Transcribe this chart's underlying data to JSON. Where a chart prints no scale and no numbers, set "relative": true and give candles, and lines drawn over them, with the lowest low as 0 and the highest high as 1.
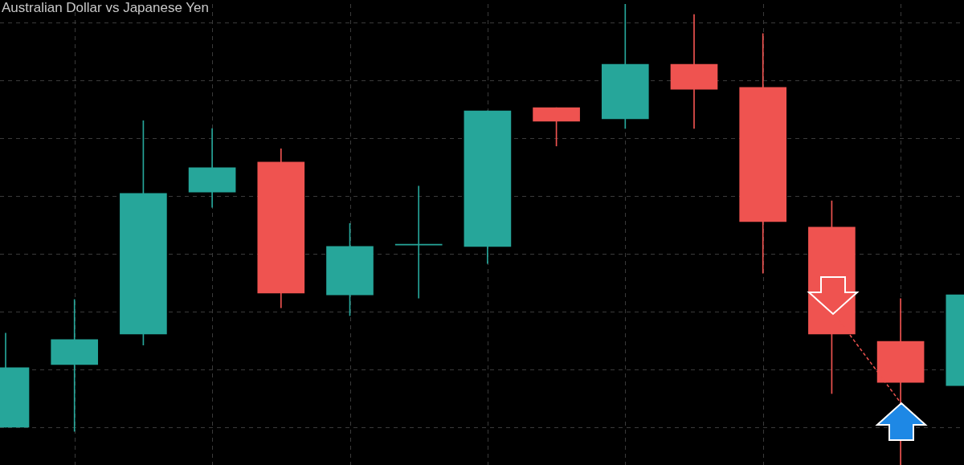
{
  "chart_data": {
    "type": "candlestick",
    "title": "Australian Dollar vs Japanese Yen",
    "relative": true,
    "grid": true,
    "categories": [
      null,
      null,
      null,
      null,
      null,
      null,
      null,
      null,
      null,
      null,
      null,
      null,
      null,
      null,
      null
    ],
    "colors": [
      "#26a69a",
      "#26a69a",
      "#26a69a",
      "#26a69a",
      "#ef5350",
      "#26a69a",
      "#26a69a",
      "#26a69a",
      "#ef5350",
      "#26a69a",
      "#ef5350",
      "#ef5350",
      "#ef5350",
      "#ef5350",
      "#26a69a"
    ],
    "ohlc": [
      [
        0.082,
        0.286,
        0.082,
        0.211
      ],
      [
        0.218,
        0.359,
        0.073,
        0.272
      ],
      [
        0.284,
        0.747,
        0.26,
        0.589
      ],
      [
        0.592,
        0.73,
        0.559,
        0.645
      ],
      [
        0.657,
        0.686,
        0.341,
        0.373
      ],
      [
        0.369,
        0.524,
        0.324,
        0.474
      ],
      [
        0.477,
        0.605,
        0.362,
        0.477
      ],
      [
        0.474,
        0.768,
        0.437,
        0.768
      ],
      [
        0.775,
        0.775,
        0.692,
        0.746
      ],
      [
        0.751,
        1,
        0.73,
        0.869
      ],
      [
        0.869,
        0.977,
        0.73,
        0.815
      ],
      [
        0.819,
        0.936,
        0.416,
        0.528
      ],
      [
        0.516,
        0.573,
        0.155,
        0.284
      ],
      [
        0.268,
        0.361,
        0,
        0.179
      ],
      [
        0.172,
        0.369,
        0.172,
        0.369
      ]
    ]
  }
}
